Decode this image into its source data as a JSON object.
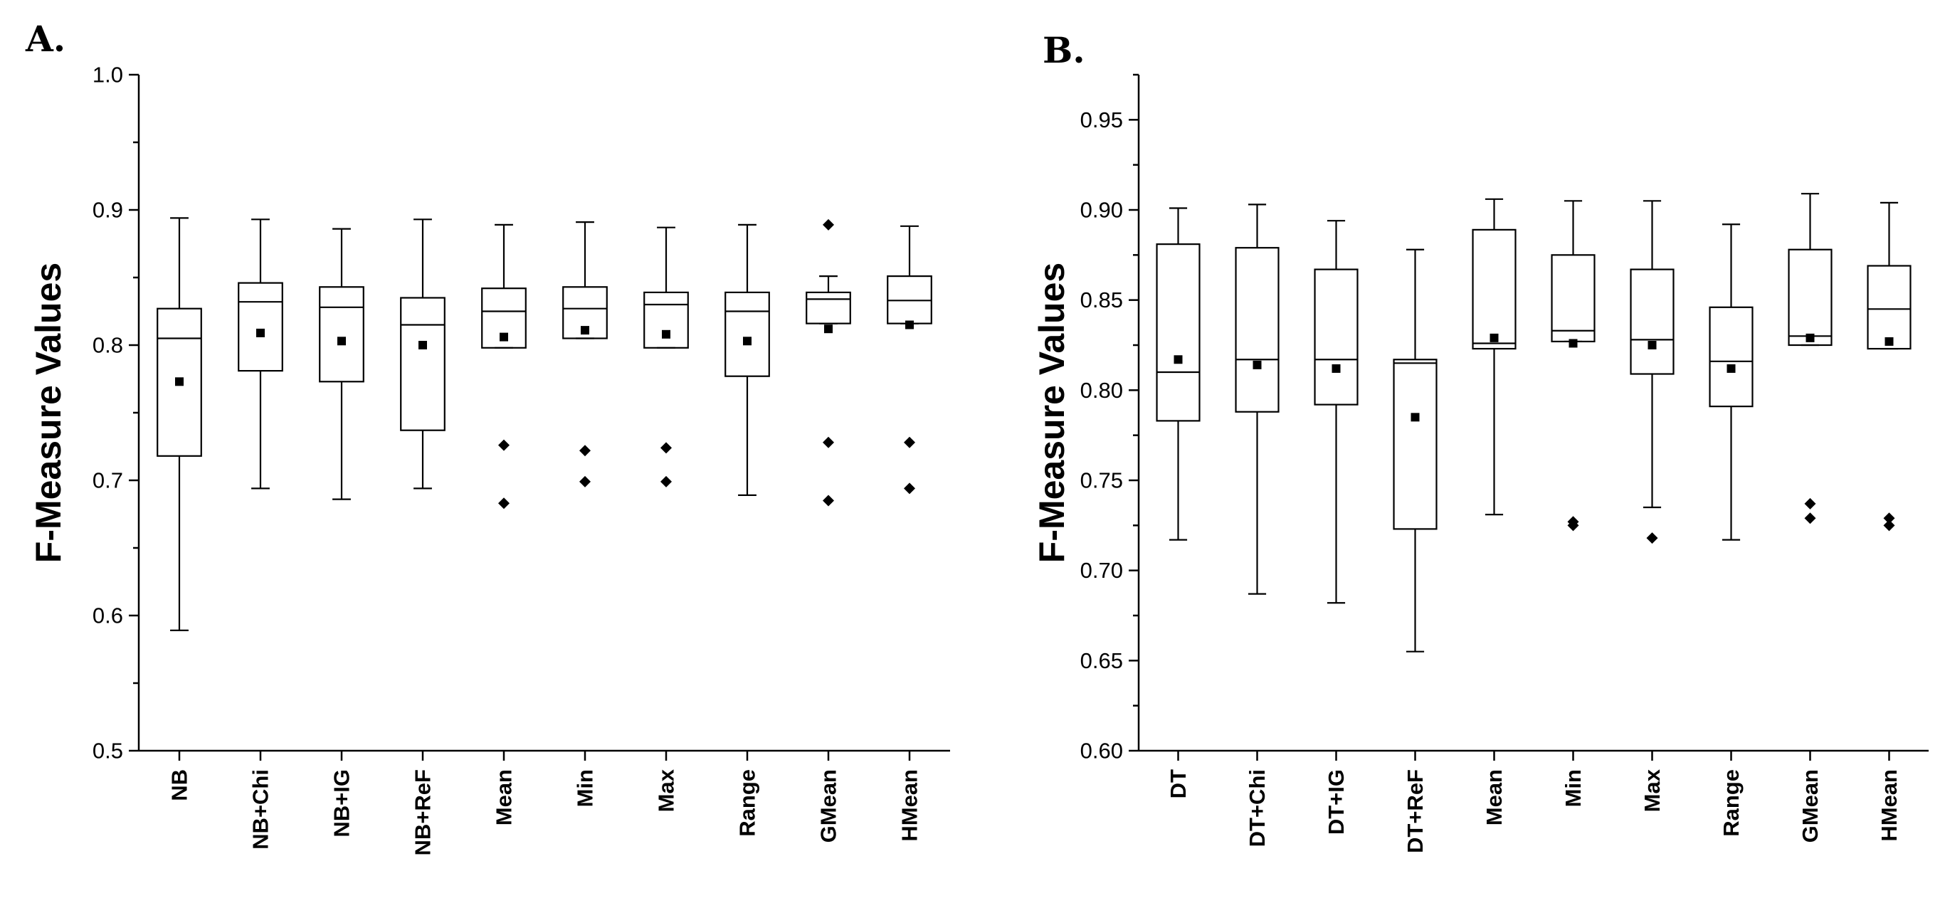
{
  "chart_data": [
    {
      "panel": "A.",
      "type": "box",
      "ylabel": "F-Measure Values",
      "ylim": [
        0.5,
        1.0
      ],
      "yticks": [
        "0.5",
        "0.6",
        "0.7",
        "0.8",
        "0.9",
        "1.0"
      ],
      "categories": [
        "NB",
        "NB+Chi",
        "NB+IG",
        "NB+ReF",
        "Mean",
        "Min",
        "Max",
        "Range",
        "GMean",
        "HMean"
      ],
      "boxes": [
        {
          "whisker_low": 0.589,
          "q1": 0.718,
          "median": 0.805,
          "q3": 0.827,
          "whisker_high": 0.894,
          "mean": 0.773,
          "outliers": []
        },
        {
          "whisker_low": 0.694,
          "q1": 0.781,
          "median": 0.832,
          "q3": 0.846,
          "whisker_high": 0.893,
          "mean": 0.809,
          "outliers": []
        },
        {
          "whisker_low": 0.686,
          "q1": 0.773,
          "median": 0.828,
          "q3": 0.843,
          "whisker_high": 0.886,
          "mean": 0.803,
          "outliers": []
        },
        {
          "whisker_low": 0.694,
          "q1": 0.737,
          "median": 0.815,
          "q3": 0.835,
          "whisker_high": 0.893,
          "mean": 0.8,
          "outliers": []
        },
        {
          "whisker_low": 0.798,
          "q1": 0.798,
          "median": 0.825,
          "q3": 0.842,
          "whisker_high": 0.889,
          "mean": 0.806,
          "outliers": [
            0.726,
            0.683
          ]
        },
        {
          "whisker_low": 0.805,
          "q1": 0.805,
          "median": 0.827,
          "q3": 0.843,
          "whisker_high": 0.891,
          "mean": 0.811,
          "outliers": [
            0.722,
            0.699
          ]
        },
        {
          "whisker_low": 0.798,
          "q1": 0.798,
          "median": 0.83,
          "q3": 0.839,
          "whisker_high": 0.887,
          "mean": 0.808,
          "outliers": [
            0.724,
            0.699
          ]
        },
        {
          "whisker_low": 0.689,
          "q1": 0.777,
          "median": 0.825,
          "q3": 0.839,
          "whisker_high": 0.889,
          "mean": 0.803,
          "outliers": []
        },
        {
          "whisker_low": 0.816,
          "q1": 0.816,
          "median": 0.834,
          "q3": 0.839,
          "whisker_high": 0.851,
          "mean": 0.812,
          "outliers": [
            0.889,
            0.728,
            0.685
          ]
        },
        {
          "whisker_low": 0.816,
          "q1": 0.816,
          "median": 0.833,
          "q3": 0.851,
          "whisker_high": 0.888,
          "mean": 0.815,
          "outliers": [
            0.728,
            0.694
          ]
        }
      ]
    },
    {
      "panel": "B.",
      "type": "box",
      "ylabel": "F-Measure Values",
      "ylim": [
        0.6,
        0.975
      ],
      "yticks": [
        "0.60",
        "0.65",
        "0.70",
        "0.75",
        "0.80",
        "0.85",
        "0.90",
        "0.95"
      ],
      "categories": [
        "DT",
        "DT+Chi",
        "DT+IG",
        "DT+ReF",
        "Mean",
        "Min",
        "Max",
        "Range",
        "GMean",
        "HMean"
      ],
      "boxes": [
        {
          "whisker_low": 0.717,
          "q1": 0.783,
          "median": 0.81,
          "q3": 0.881,
          "whisker_high": 0.901,
          "mean": 0.817,
          "outliers": []
        },
        {
          "whisker_low": 0.687,
          "q1": 0.788,
          "median": 0.817,
          "q3": 0.879,
          "whisker_high": 0.903,
          "mean": 0.814,
          "outliers": []
        },
        {
          "whisker_low": 0.682,
          "q1": 0.792,
          "median": 0.817,
          "q3": 0.867,
          "whisker_high": 0.894,
          "mean": 0.812,
          "outliers": []
        },
        {
          "whisker_low": 0.655,
          "q1": 0.723,
          "median": 0.815,
          "q3": 0.817,
          "whisker_high": 0.878,
          "mean": 0.785,
          "outliers": []
        },
        {
          "whisker_low": 0.731,
          "q1": 0.823,
          "median": 0.826,
          "q3": 0.889,
          "whisker_high": 0.906,
          "mean": 0.829,
          "outliers": []
        },
        {
          "whisker_low": 0.827,
          "q1": 0.827,
          "median": 0.833,
          "q3": 0.875,
          "whisker_high": 0.905,
          "mean": 0.826,
          "outliers": [
            0.727,
            0.725
          ]
        },
        {
          "whisker_low": 0.735,
          "q1": 0.809,
          "median": 0.828,
          "q3": 0.867,
          "whisker_high": 0.905,
          "mean": 0.825,
          "outliers": [
            0.718
          ]
        },
        {
          "whisker_low": 0.717,
          "q1": 0.791,
          "median": 0.816,
          "q3": 0.846,
          "whisker_high": 0.892,
          "mean": 0.812,
          "outliers": []
        },
        {
          "whisker_low": 0.825,
          "q1": 0.825,
          "median": 0.83,
          "q3": 0.878,
          "whisker_high": 0.909,
          "mean": 0.829,
          "outliers": [
            0.737,
            0.729
          ]
        },
        {
          "whisker_low": 0.823,
          "q1": 0.823,
          "median": 0.845,
          "q3": 0.869,
          "whisker_high": 0.904,
          "mean": 0.827,
          "outliers": [
            0.729,
            0.725
          ]
        }
      ]
    }
  ]
}
